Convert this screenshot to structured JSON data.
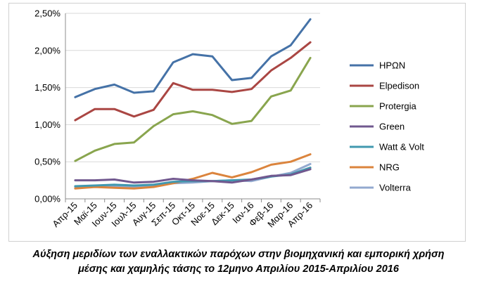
{
  "chart_data": {
    "type": "line",
    "title": "",
    "xlabel": "",
    "ylabel": "",
    "categories": [
      "Απρ-15",
      "Μαϊ-15",
      "Ιουν-15",
      "Ιουλ-15",
      "Αυγ-15",
      "Σεπ-15",
      "Οκτ-15",
      "Νοε-15",
      "Δεκ-15",
      "Ιαν-16",
      "Φεβ-16",
      "Μαρ-16",
      "Απρ-16"
    ],
    "y_ticks": [
      "0,00%",
      "0,50%",
      "1,00%",
      "1,50%",
      "2,00%",
      "2,50%"
    ],
    "ylim": [
      0,
      2.5
    ],
    "y_unit": "%",
    "grid": true,
    "legend_position": "right",
    "series": [
      {
        "name": "ΗΡΩΝ",
        "color": "#4572a7",
        "values": [
          1.37,
          1.48,
          1.54,
          1.43,
          1.45,
          1.84,
          1.95,
          1.92,
          1.6,
          1.63,
          1.92,
          2.07,
          2.42
        ]
      },
      {
        "name": "Elpedison",
        "color": "#aa4643",
        "values": [
          1.06,
          1.21,
          1.21,
          1.11,
          1.2,
          1.56,
          1.47,
          1.47,
          1.44,
          1.48,
          1.73,
          1.9,
          2.11
        ]
      },
      {
        "name": "Protergia",
        "color": "#89a54e",
        "values": [
          0.51,
          0.65,
          0.74,
          0.76,
          0.98,
          1.14,
          1.18,
          1.13,
          1.01,
          1.05,
          1.38,
          1.46,
          1.9
        ]
      },
      {
        "name": "Green",
        "color": "#71588f",
        "values": [
          0.25,
          0.25,
          0.26,
          0.22,
          0.23,
          0.27,
          0.25,
          0.24,
          0.22,
          0.26,
          0.31,
          0.32,
          0.4
        ]
      },
      {
        "name": "Watt & Volt",
        "color": "#4198af",
        "values": [
          0.17,
          0.18,
          0.19,
          0.18,
          0.19,
          0.23,
          0.24,
          0.24,
          0.25,
          0.26,
          0.3,
          0.33,
          0.42
        ]
      },
      {
        "name": "NRG",
        "color": "#db843d",
        "values": [
          0.14,
          0.16,
          0.15,
          0.14,
          0.16,
          0.21,
          0.27,
          0.35,
          0.29,
          0.36,
          0.46,
          0.5,
          0.6
        ]
      },
      {
        "name": "Volterra",
        "color": "#93a9cf",
        "values": [
          0.16,
          0.17,
          0.17,
          0.16,
          0.18,
          0.21,
          0.22,
          0.24,
          0.25,
          0.24,
          0.3,
          0.35,
          0.47
        ]
      }
    ]
  },
  "caption": {
    "line1": "Αύξηση μεριδίων των εναλλακτικών παρόχων στην βιομηχανική και εμπορική χρήση",
    "line2": "μέσης και χαμηλής τάσης το 12μηνο Απριλίου 2015-Απριλίου 2016"
  }
}
